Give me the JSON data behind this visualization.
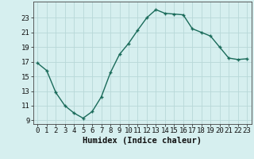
{
  "x": [
    0,
    1,
    2,
    3,
    4,
    5,
    6,
    7,
    8,
    9,
    10,
    11,
    12,
    13,
    14,
    15,
    16,
    17,
    18,
    19,
    20,
    21,
    22,
    23
  ],
  "y": [
    16.8,
    15.8,
    12.8,
    11.0,
    10.0,
    9.3,
    10.2,
    12.2,
    15.5,
    18.0,
    19.5,
    21.3,
    23.0,
    24.1,
    23.6,
    23.5,
    23.4,
    21.5,
    21.0,
    20.5,
    19.0,
    17.5,
    17.3,
    17.4
  ],
  "line_color": "#1a6b5a",
  "marker": "+",
  "bg_color": "#d6efef",
  "grid_color": "#b8d8d8",
  "xlabel": "Humidex (Indice chaleur)",
  "xlim": [
    -0.5,
    23.5
  ],
  "ylim": [
    8.5,
    25.2
  ],
  "yticks": [
    9,
    11,
    13,
    15,
    17,
    19,
    21,
    23
  ],
  "xticks": [
    0,
    1,
    2,
    3,
    4,
    5,
    6,
    7,
    8,
    9,
    10,
    11,
    12,
    13,
    14,
    15,
    16,
    17,
    18,
    19,
    20,
    21,
    22,
    23
  ],
  "tick_fontsize": 6.5,
  "xlabel_fontsize": 7.5,
  "linewidth": 1.0,
  "markersize": 3.5,
  "markeredgewidth": 1.0
}
